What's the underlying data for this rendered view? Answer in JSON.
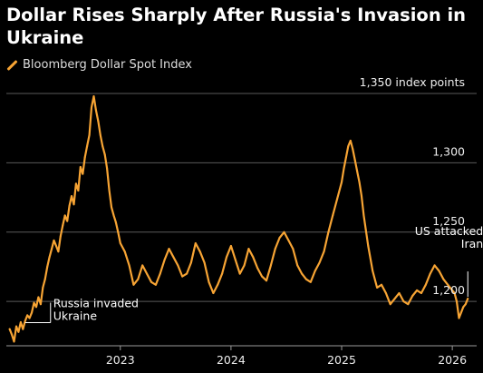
{
  "title": "Dollar Rises Sharply After Russia's Invasion in Ukraine",
  "legend": {
    "label": "Bloomberg Dollar Spot Index",
    "color": "#f7a434"
  },
  "chart_data": {
    "type": "line",
    "title": "Dollar Rises Sharply After Russia's Invasion in Ukraine",
    "xlabel": "",
    "ylabel": "",
    "unit": "index points",
    "ylim": [
      1168,
      1352
    ],
    "y_ticks": [
      {
        "value": 1350,
        "label": "1,350 index points"
      },
      {
        "value": 1300,
        "label": "1,300"
      },
      {
        "value": 1250,
        "label": "1,250"
      },
      {
        "value": 1200,
        "label": "1,200"
      }
    ],
    "x_ticks": [
      {
        "value": 2023.0,
        "label": "2023"
      },
      {
        "value": 2024.0,
        "label": "2024"
      },
      {
        "value": 2025.0,
        "label": "2025"
      },
      {
        "value": 2026.0,
        "label": "2026"
      }
    ],
    "xlim": [
      2021.97,
      2026.22
    ],
    "grid": "horizontal",
    "series": [
      {
        "name": "Bloomberg Dollar Spot Index",
        "color": "#f7a434",
        "x": [
          2022.0,
          2022.02,
          2022.04,
          2022.06,
          2022.08,
          2022.1,
          2022.12,
          2022.14,
          2022.16,
          2022.18,
          2022.2,
          2022.22,
          2022.24,
          2022.26,
          2022.28,
          2022.3,
          2022.32,
          2022.34,
          2022.36,
          2022.38,
          2022.4,
          2022.42,
          2022.44,
          2022.46,
          2022.48,
          2022.5,
          2022.52,
          2022.54,
          2022.56,
          2022.58,
          2022.6,
          2022.62,
          2022.64,
          2022.66,
          2022.68,
          2022.7,
          2022.72,
          2022.74,
          2022.76,
          2022.78,
          2022.8,
          2022.82,
          2022.84,
          2022.86,
          2022.88,
          2022.9,
          2022.92,
          2022.94,
          2022.96,
          2022.98,
          2023.0,
          2023.04,
          2023.08,
          2023.12,
          2023.16,
          2023.2,
          2023.24,
          2023.28,
          2023.32,
          2023.36,
          2023.4,
          2023.44,
          2023.48,
          2023.52,
          2023.56,
          2023.6,
          2023.64,
          2023.68,
          2023.72,
          2023.76,
          2023.8,
          2023.84,
          2023.88,
          2023.92,
          2023.96,
          2024.0,
          2024.04,
          2024.08,
          2024.12,
          2024.16,
          2024.2,
          2024.24,
          2024.28,
          2024.32,
          2024.36,
          2024.4,
          2024.44,
          2024.48,
          2024.52,
          2024.56,
          2024.6,
          2024.64,
          2024.68,
          2024.72,
          2024.76,
          2024.8,
          2024.84,
          2024.88,
          2024.92,
          2024.96,
          2025.0,
          2025.02,
          2025.04,
          2025.06,
          2025.08,
          2025.1,
          2025.12,
          2025.14,
          2025.16,
          2025.18,
          2025.2,
          2025.24,
          2025.28,
          2025.32,
          2025.36,
          2025.4,
          2025.44,
          2025.48,
          2025.52,
          2025.56,
          2025.6,
          2025.64,
          2025.68,
          2025.72,
          2025.76,
          2025.8,
          2025.84,
          2025.88,
          2025.92,
          2025.96,
          2026.0,
          2026.02,
          2026.04,
          2026.06,
          2026.08,
          2026.1,
          2026.12,
          2026.14
        ],
        "y": [
          1180,
          1176,
          1171,
          1182,
          1178,
          1185,
          1180,
          1186,
          1190,
          1188,
          1192,
          1199,
          1196,
          1203,
          1198,
          1210,
          1216,
          1225,
          1232,
          1238,
          1244,
          1240,
          1236,
          1247,
          1255,
          1262,
          1258,
          1269,
          1276,
          1270,
          1285,
          1280,
          1297,
          1292,
          1304,
          1312,
          1320,
          1340,
          1348,
          1338,
          1330,
          1320,
          1312,
          1306,
          1296,
          1280,
          1268,
          1262,
          1257,
          1250,
          1242,
          1236,
          1226,
          1212,
          1216,
          1226,
          1220,
          1214,
          1212,
          1220,
          1230,
          1238,
          1232,
          1226,
          1218,
          1220,
          1228,
          1242,
          1236,
          1228,
          1214,
          1206,
          1212,
          1220,
          1232,
          1240,
          1230,
          1220,
          1226,
          1238,
          1232,
          1224,
          1218,
          1215,
          1226,
          1238,
          1246,
          1250,
          1244,
          1238,
          1226,
          1220,
          1216,
          1214,
          1222,
          1228,
          1236,
          1250,
          1262,
          1274,
          1286,
          1296,
          1304,
          1312,
          1316,
          1310,
          1302,
          1294,
          1286,
          1276,
          1262,
          1240,
          1222,
          1210,
          1212,
          1206,
          1198,
          1202,
          1206,
          1200,
          1198,
          1204,
          1208,
          1206,
          1212,
          1220,
          1226,
          1222,
          1216,
          1212,
          1208,
          1206,
          1200,
          1188,
          1192,
          1196,
          1198,
          1202
        ],
        "annotations": [
          {
            "x": 2022.15,
            "label_lines": [
              "Russia invaded",
              "Ukraine"
            ]
          },
          {
            "x": 2026.14,
            "label_lines": [
              "US attacked",
              "Iran"
            ]
          }
        ]
      }
    ]
  }
}
